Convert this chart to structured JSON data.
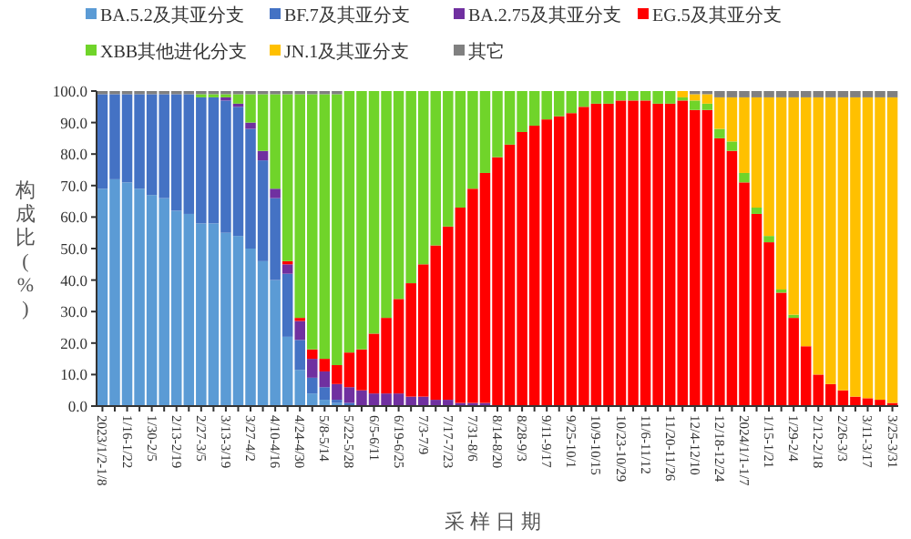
{
  "chart_data": {
    "type": "bar",
    "stacked": true,
    "xlabel": "采样日期",
    "ylabel": "构成比(%)",
    "legend": "top",
    "grid": false,
    "categories": [
      "2023/1/2-1/8",
      null,
      "1/16-1/22",
      null,
      "1/30-2/5",
      null,
      "2/13-2/19",
      null,
      "2/27-3/5",
      null,
      "3/13-3/19",
      null,
      "3/27-4/2",
      null,
      "4/10-4/16",
      null,
      "4/24-4/30",
      null,
      "5/8-5/14",
      null,
      "5/22-5/28",
      null,
      "6/5-6/11",
      null,
      "6/19-6/25",
      null,
      "7/3-7/9",
      null,
      "7/17-7/23",
      null,
      "7/31-8/6",
      null,
      "8/14-8/20",
      null,
      "8/28-9/3",
      null,
      "9/11-9/17",
      null,
      "9/25-10/1",
      null,
      "10/9-10/15",
      null,
      "10/23-10/29",
      null,
      "11/6-11/12",
      null,
      "11/20-11/26",
      null,
      "12/4-12/10",
      null,
      "12/18-12/24",
      null,
      "2024/1/1-1/7",
      null,
      "1/15-1/21",
      null,
      "1/29-2/4",
      null,
      "2/12-2/18",
      null,
      "2/26-3/3",
      null,
      "3/11-3/17",
      null,
      "3/25-3/31"
    ],
    "ylim": [
      0,
      100
    ],
    "yticks": [
      {
        "value": 0,
        "label": "0.0"
      },
      {
        "value": 10,
        "label": "10.0"
      },
      {
        "value": 20,
        "label": "20.0"
      },
      {
        "value": 30,
        "label": "30.0"
      },
      {
        "value": 40,
        "label": "40.0"
      },
      {
        "value": 50,
        "label": "50.0"
      },
      {
        "value": 60,
        "label": "60.0"
      },
      {
        "value": 70,
        "label": "70.0"
      },
      {
        "value": 80,
        "label": "80.0"
      },
      {
        "value": 90,
        "label": "90.0"
      },
      {
        "value": 100,
        "label": "100.0"
      }
    ],
    "series": [
      {
        "name": "BA.5.2及其亚分支",
        "color": "#5b9bd5",
        "values": [
          69,
          72,
          71,
          69,
          67,
          66,
          62,
          61,
          58,
          58,
          55,
          54,
          50,
          46,
          40,
          22,
          11.5,
          4,
          2,
          1,
          0,
          0,
          0,
          0,
          0,
          0,
          0,
          0,
          0,
          0,
          0,
          0,
          0,
          0,
          0,
          0,
          0,
          0,
          0,
          0,
          0,
          0,
          0,
          0,
          0,
          0,
          0,
          0,
          0,
          0,
          0,
          0,
          0,
          0,
          0,
          0,
          0,
          0,
          0,
          0,
          0,
          0,
          0,
          0,
          0
        ]
      },
      {
        "name": "BF.7及其亚分支",
        "color": "#4472c4",
        "values": [
          30,
          27,
          28,
          30,
          32,
          33,
          37,
          38,
          40,
          40,
          42,
          41,
          38,
          32,
          26,
          20,
          9.5,
          5,
          4,
          1,
          1,
          0,
          0,
          0,
          0,
          0,
          0,
          0,
          0,
          0,
          0,
          0,
          0,
          0,
          0,
          0,
          0,
          0,
          0,
          0,
          0,
          0,
          0,
          0,
          0,
          0,
          0,
          0,
          0,
          0,
          0,
          0,
          0,
          0,
          0,
          0,
          0,
          0,
          0,
          0,
          0,
          0,
          0,
          0,
          0
        ]
      },
      {
        "name": "BA.2.75及其亚分支",
        "color": "#7030a0",
        "values": [
          0,
          0,
          0,
          0,
          0,
          0,
          0,
          0,
          0,
          0,
          1,
          1,
          2,
          3,
          3,
          3,
          6,
          6,
          5,
          5,
          5,
          5,
          4,
          4,
          4,
          3,
          3,
          2,
          2,
          1,
          1,
          1,
          0,
          0,
          0,
          0,
          0,
          0,
          0,
          0,
          0,
          0,
          0,
          0,
          0,
          0,
          0,
          0,
          0,
          0,
          0,
          0,
          0,
          0,
          0,
          0,
          0,
          0,
          0,
          0,
          0,
          0,
          0,
          0,
          0
        ]
      },
      {
        "name": "EG.5及其亚分支",
        "color": "#ff0000",
        "values": [
          0,
          0,
          0,
          0,
          0,
          0,
          0,
          0,
          0,
          0,
          0,
          0,
          0,
          0,
          0,
          1,
          1,
          3,
          4,
          6,
          11,
          13,
          19,
          24,
          30,
          36,
          42,
          49,
          55,
          62,
          68,
          73,
          79,
          83,
          87,
          89,
          91,
          92,
          93,
          95,
          96,
          96,
          97,
          97,
          97,
          96,
          96,
          97,
          94,
          94,
          85,
          81,
          71,
          61,
          52,
          36,
          28,
          19,
          10,
          7,
          5,
          3,
          2.5,
          2,
          1
        ]
      },
      {
        "name": "XBB其他进化分支",
        "color": "#70d42a",
        "values": [
          0,
          0,
          0,
          0,
          0,
          0,
          0,
          0,
          1,
          1,
          1,
          3,
          9,
          18,
          30,
          53,
          71,
          81,
          84,
          86,
          83,
          82,
          77,
          72,
          66,
          61,
          55,
          49,
          43,
          37,
          31,
          26,
          21,
          17,
          13,
          11,
          9,
          8,
          7,
          5,
          4,
          4,
          3,
          3,
          3,
          4,
          4,
          1,
          3,
          2,
          3,
          3,
          3,
          2,
          2,
          1,
          1,
          0,
          0,
          0,
          0,
          0,
          0,
          0,
          0
        ]
      },
      {
        "name": "JN.1及其亚分支",
        "color": "#ffc000",
        "values": [
          0,
          0,
          0,
          0,
          0,
          0,
          0,
          0,
          0,
          0,
          0,
          0,
          0,
          0,
          0,
          0,
          0,
          0,
          0,
          0,
          0,
          0,
          0,
          0,
          0,
          0,
          0,
          0,
          0,
          0,
          0,
          0,
          0,
          0,
          0,
          0,
          0,
          0,
          0,
          0,
          0,
          0,
          0,
          0,
          0,
          0,
          0,
          2,
          2,
          3,
          10,
          14,
          24,
          35,
          44,
          61,
          69,
          79,
          88,
          91,
          93,
          95,
          95.5,
          96,
          97
        ]
      },
      {
        "name": "其它",
        "color": "#808080",
        "values": [
          1,
          1,
          1,
          1,
          1,
          1,
          1,
          1,
          1,
          1,
          1,
          1,
          1,
          1,
          1,
          1,
          1,
          1,
          1,
          1,
          0,
          0,
          0,
          0,
          0,
          0,
          0,
          0,
          0,
          0,
          0,
          0,
          0,
          0,
          0,
          0,
          0,
          0,
          0,
          0,
          0,
          0,
          0,
          0,
          0,
          0,
          0,
          0,
          1,
          1,
          2,
          2,
          2,
          2,
          2,
          2,
          2,
          2,
          2,
          2,
          2,
          2,
          2,
          2,
          2
        ]
      }
    ]
  }
}
